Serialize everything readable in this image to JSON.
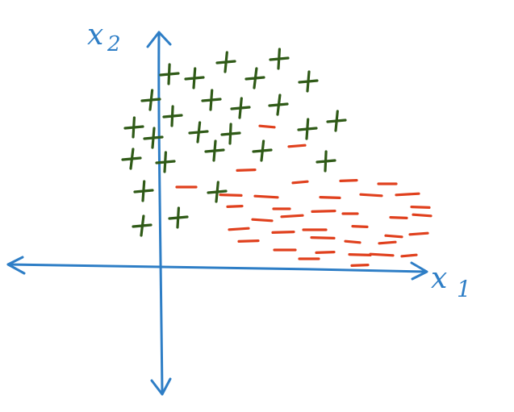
{
  "axes": {
    "x_label": "x",
    "x_subscript": "1",
    "y_label": "x",
    "y_subscript": "2"
  },
  "colors": {
    "axis": "#2e7ec6",
    "positive": "#2f5a17",
    "negative": "#e0401d"
  },
  "symbols": {
    "positive": "plus",
    "negative": "minus"
  }
}
